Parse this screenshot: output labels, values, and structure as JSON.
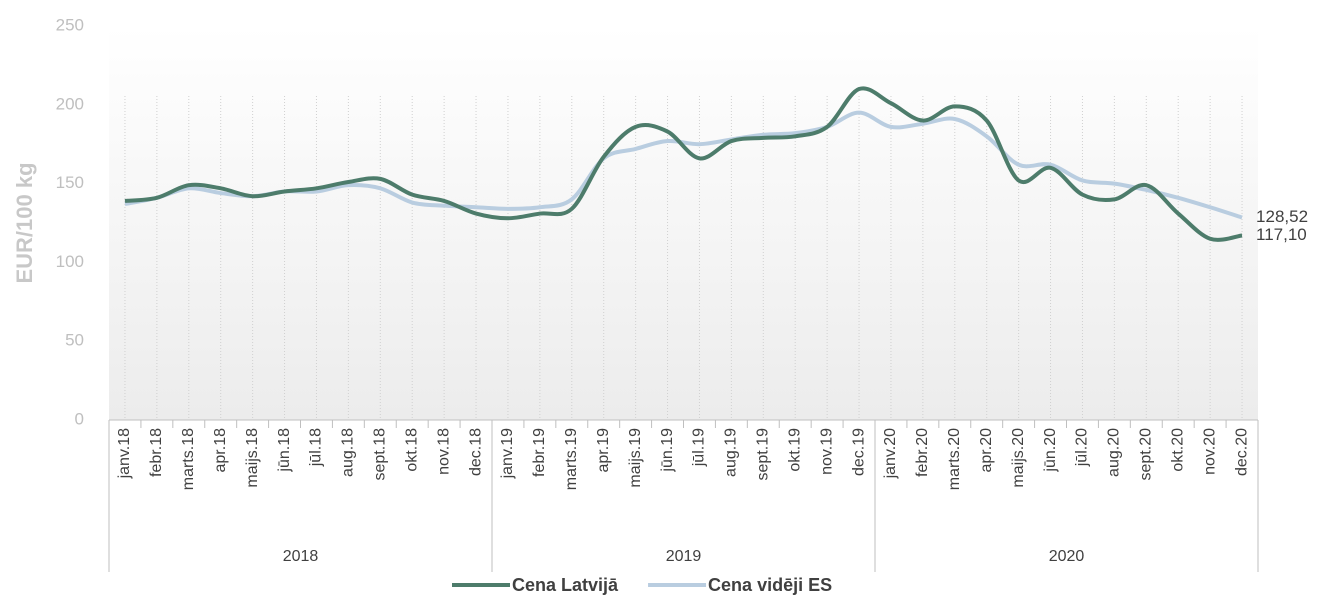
{
  "chart_data": {
    "type": "line",
    "ylabel": "EUR/100 kg",
    "categories": [
      "janv.18",
      "febr.18",
      "marts.18",
      "apr.18",
      "maijs.18",
      "jūn.18",
      "jūl.18",
      "aug.18",
      "sept.18",
      "okt.18",
      "nov.18",
      "dec.18",
      "janv.19",
      "febr.19",
      "marts.19",
      "apr.19",
      "maijs.19",
      "jūn.19",
      "jūl.19",
      "aug.19",
      "sept.19",
      "okt.19",
      "nov.19",
      "dec.19",
      "janv.20",
      "febr.20",
      "marts.20",
      "apr.20",
      "maijs.20",
      "jūn.20",
      "jūl.20",
      "aug.20",
      "sept.20",
      "okt.20",
      "nov.20",
      "dec.20"
    ],
    "years": [
      "2018",
      "2019",
      "2020"
    ],
    "series": [
      {
        "name": "Cena Latvijā",
        "color": "#4d7c6b",
        "values": [
          139,
          141,
          149,
          147,
          142,
          145,
          147,
          151,
          153,
          143,
          139,
          131,
          128,
          131,
          134,
          167,
          186,
          183,
          166,
          177,
          179,
          180,
          186,
          210,
          201,
          190,
          199,
          190,
          152,
          160,
          143,
          140,
          149,
          131,
          115,
          117.1
        ],
        "value_labels": [
          null,
          null,
          null,
          null,
          null,
          null,
          null,
          null,
          null,
          null,
          null,
          null,
          null,
          null,
          null,
          null,
          null,
          null,
          null,
          null,
          null,
          null,
          null,
          null,
          null,
          null,
          null,
          null,
          null,
          null,
          null,
          null,
          null,
          null,
          null,
          "117,10"
        ]
      },
      {
        "name": "Cena vidēji ES",
        "color": "#b9cde0",
        "values": [
          137,
          141,
          147,
          144,
          142,
          145,
          145,
          149,
          147,
          138,
          136,
          135,
          134,
          135,
          140,
          166,
          172,
          177,
          175,
          178,
          181,
          182,
          186,
          195,
          186,
          188,
          191,
          180,
          162,
          162,
          152,
          150,
          146,
          141,
          135,
          128.52
        ],
        "value_labels": [
          null,
          null,
          null,
          null,
          null,
          null,
          null,
          null,
          null,
          null,
          null,
          null,
          null,
          null,
          null,
          null,
          null,
          null,
          null,
          null,
          null,
          null,
          null,
          null,
          null,
          null,
          null,
          null,
          null,
          null,
          null,
          null,
          null,
          null,
          null,
          "128,52"
        ]
      }
    ],
    "ylim": [
      0,
      250
    ],
    "yticks": [
      0,
      50,
      100,
      150,
      200,
      250
    ],
    "grid": true
  }
}
